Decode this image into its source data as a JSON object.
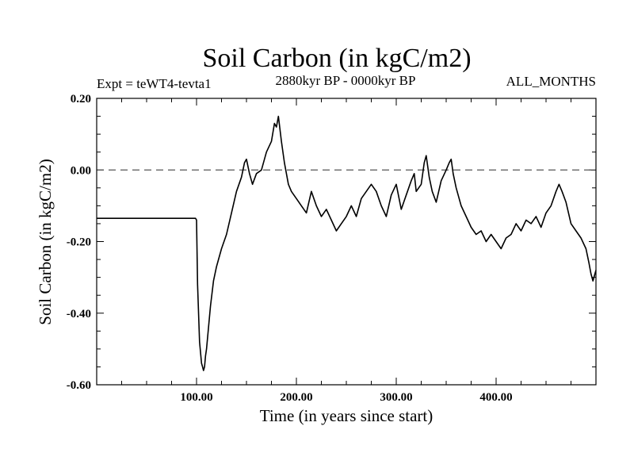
{
  "chart_data": {
    "type": "line",
    "title": "Soil Carbon (in kgC/m2)",
    "subtitle_left": "Expt = teWT4-tevta1",
    "subtitle_center": "2880kyr BP - 0000kyr BP",
    "subtitle_right": "ALL_MONTHS",
    "xlabel": "Time (in years since start)",
    "ylabel": "Soil Carbon (in kgC/m2)",
    "xlim": [
      0,
      500
    ],
    "ylim": [
      -0.6,
      0.2
    ],
    "x_major_ticks": [
      100,
      200,
      300,
      400
    ],
    "x_tick_labels": [
      "100.00",
      "200.00",
      "300.00",
      "400.00"
    ],
    "y_major_ticks": [
      -0.6,
      -0.4,
      -0.2,
      0.0,
      0.2
    ],
    "y_tick_labels": [
      "-0.60",
      "-0.40",
      "-0.20",
      "0.00",
      "0.20"
    ],
    "reference_line": {
      "y": 0.0,
      "style": "dashed"
    },
    "series": [
      {
        "name": "Soil Carbon",
        "color": "#000000",
        "x": [
          0,
          99,
          100,
          101,
          103,
          105,
          106,
          107,
          108,
          109,
          110,
          112,
          114,
          117,
          120,
          125,
          130,
          135,
          140,
          145,
          148,
          150,
          153,
          156,
          160,
          165,
          170,
          175,
          178,
          180,
          182,
          185,
          188,
          192,
          195,
          200,
          205,
          210,
          215,
          220,
          225,
          230,
          235,
          240,
          245,
          250,
          255,
          260,
          265,
          270,
          275,
          280,
          285,
          290,
          295,
          300,
          305,
          310,
          315,
          318,
          320,
          325,
          328,
          330,
          333,
          336,
          340,
          345,
          350,
          353,
          355,
          357,
          360,
          365,
          370,
          375,
          380,
          385,
          390,
          395,
          400,
          405,
          410,
          415,
          420,
          425,
          430,
          435,
          440,
          445,
          450,
          455,
          460,
          463,
          466,
          470,
          475,
          480,
          485,
          490,
          493,
          495,
          497,
          500
        ],
        "values": [
          -0.135,
          -0.135,
          -0.14,
          -0.32,
          -0.48,
          -0.54,
          -0.55,
          -0.56,
          -0.55,
          -0.52,
          -0.5,
          -0.44,
          -0.38,
          -0.31,
          -0.27,
          -0.22,
          -0.18,
          -0.12,
          -0.06,
          -0.02,
          0.02,
          0.03,
          -0.01,
          -0.04,
          -0.01,
          0.0,
          0.05,
          0.08,
          0.13,
          0.12,
          0.15,
          0.08,
          0.02,
          -0.04,
          -0.06,
          -0.08,
          -0.1,
          -0.12,
          -0.06,
          -0.1,
          -0.13,
          -0.11,
          -0.14,
          -0.17,
          -0.15,
          -0.13,
          -0.1,
          -0.13,
          -0.08,
          -0.06,
          -0.04,
          -0.06,
          -0.1,
          -0.13,
          -0.07,
          -0.04,
          -0.11,
          -0.07,
          -0.03,
          -0.01,
          -0.06,
          -0.04,
          0.02,
          0.04,
          -0.02,
          -0.06,
          -0.09,
          -0.03,
          0.0,
          0.02,
          0.03,
          -0.01,
          -0.05,
          -0.1,
          -0.13,
          -0.16,
          -0.18,
          -0.17,
          -0.2,
          -0.18,
          -0.2,
          -0.22,
          -0.19,
          -0.18,
          -0.15,
          -0.17,
          -0.14,
          -0.15,
          -0.13,
          -0.16,
          -0.12,
          -0.1,
          -0.06,
          -0.04,
          -0.06,
          -0.09,
          -0.15,
          -0.17,
          -0.19,
          -0.22,
          -0.26,
          -0.29,
          -0.31,
          -0.28
        ]
      }
    ]
  }
}
